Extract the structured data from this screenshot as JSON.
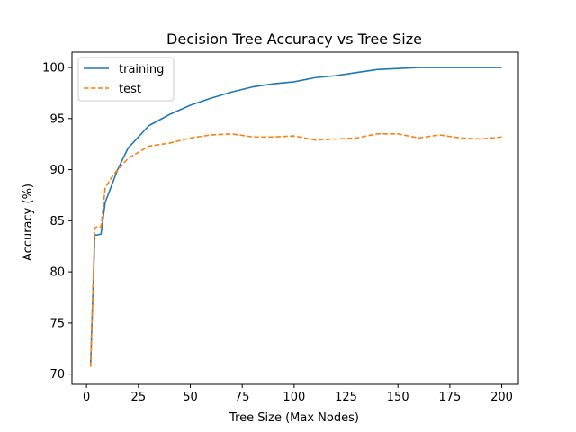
{
  "chart_data": {
    "type": "line",
    "title": "Decision Tree Accuracy vs Tree Size",
    "xlabel": "Tree Size (Max Nodes)",
    "ylabel": "Accuracy (%)",
    "xlim": [
      -7,
      208
    ],
    "ylim": [
      69,
      101.5
    ],
    "x_ticks": [
      0,
      25,
      50,
      75,
      100,
      125,
      150,
      175,
      200
    ],
    "y_ticks": [
      70,
      75,
      80,
      85,
      90,
      95,
      100
    ],
    "grid": false,
    "legend": {
      "position": "top-left"
    },
    "x": [
      2,
      4,
      5,
      7,
      9,
      12,
      15,
      20,
      25,
      30,
      40,
      50,
      60,
      70,
      80,
      90,
      100,
      110,
      120,
      130,
      140,
      150,
      160,
      170,
      180,
      190,
      200
    ],
    "series": [
      {
        "name": "training",
        "color": "#1f77b4",
        "style": "solid",
        "values": [
          71.0,
          83.6,
          83.6,
          83.7,
          86.8,
          88.4,
          90.0,
          92.1,
          93.2,
          94.3,
          95.4,
          96.3,
          97.0,
          97.6,
          98.1,
          98.4,
          98.6,
          99.0,
          99.2,
          99.5,
          99.8,
          99.9,
          100.0,
          100.0,
          100.0,
          100.0,
          100.0
        ]
      },
      {
        "name": "test",
        "color": "#ff7f0e",
        "style": "dashed",
        "values": [
          70.7,
          84.3,
          84.4,
          84.4,
          88.2,
          89.2,
          90.0,
          91.1,
          91.7,
          92.3,
          92.6,
          93.1,
          93.4,
          93.5,
          93.2,
          93.2,
          93.3,
          92.9,
          93.0,
          93.1,
          93.5,
          93.5,
          93.1,
          93.4,
          93.1,
          93.0,
          93.2
        ]
      }
    ]
  }
}
